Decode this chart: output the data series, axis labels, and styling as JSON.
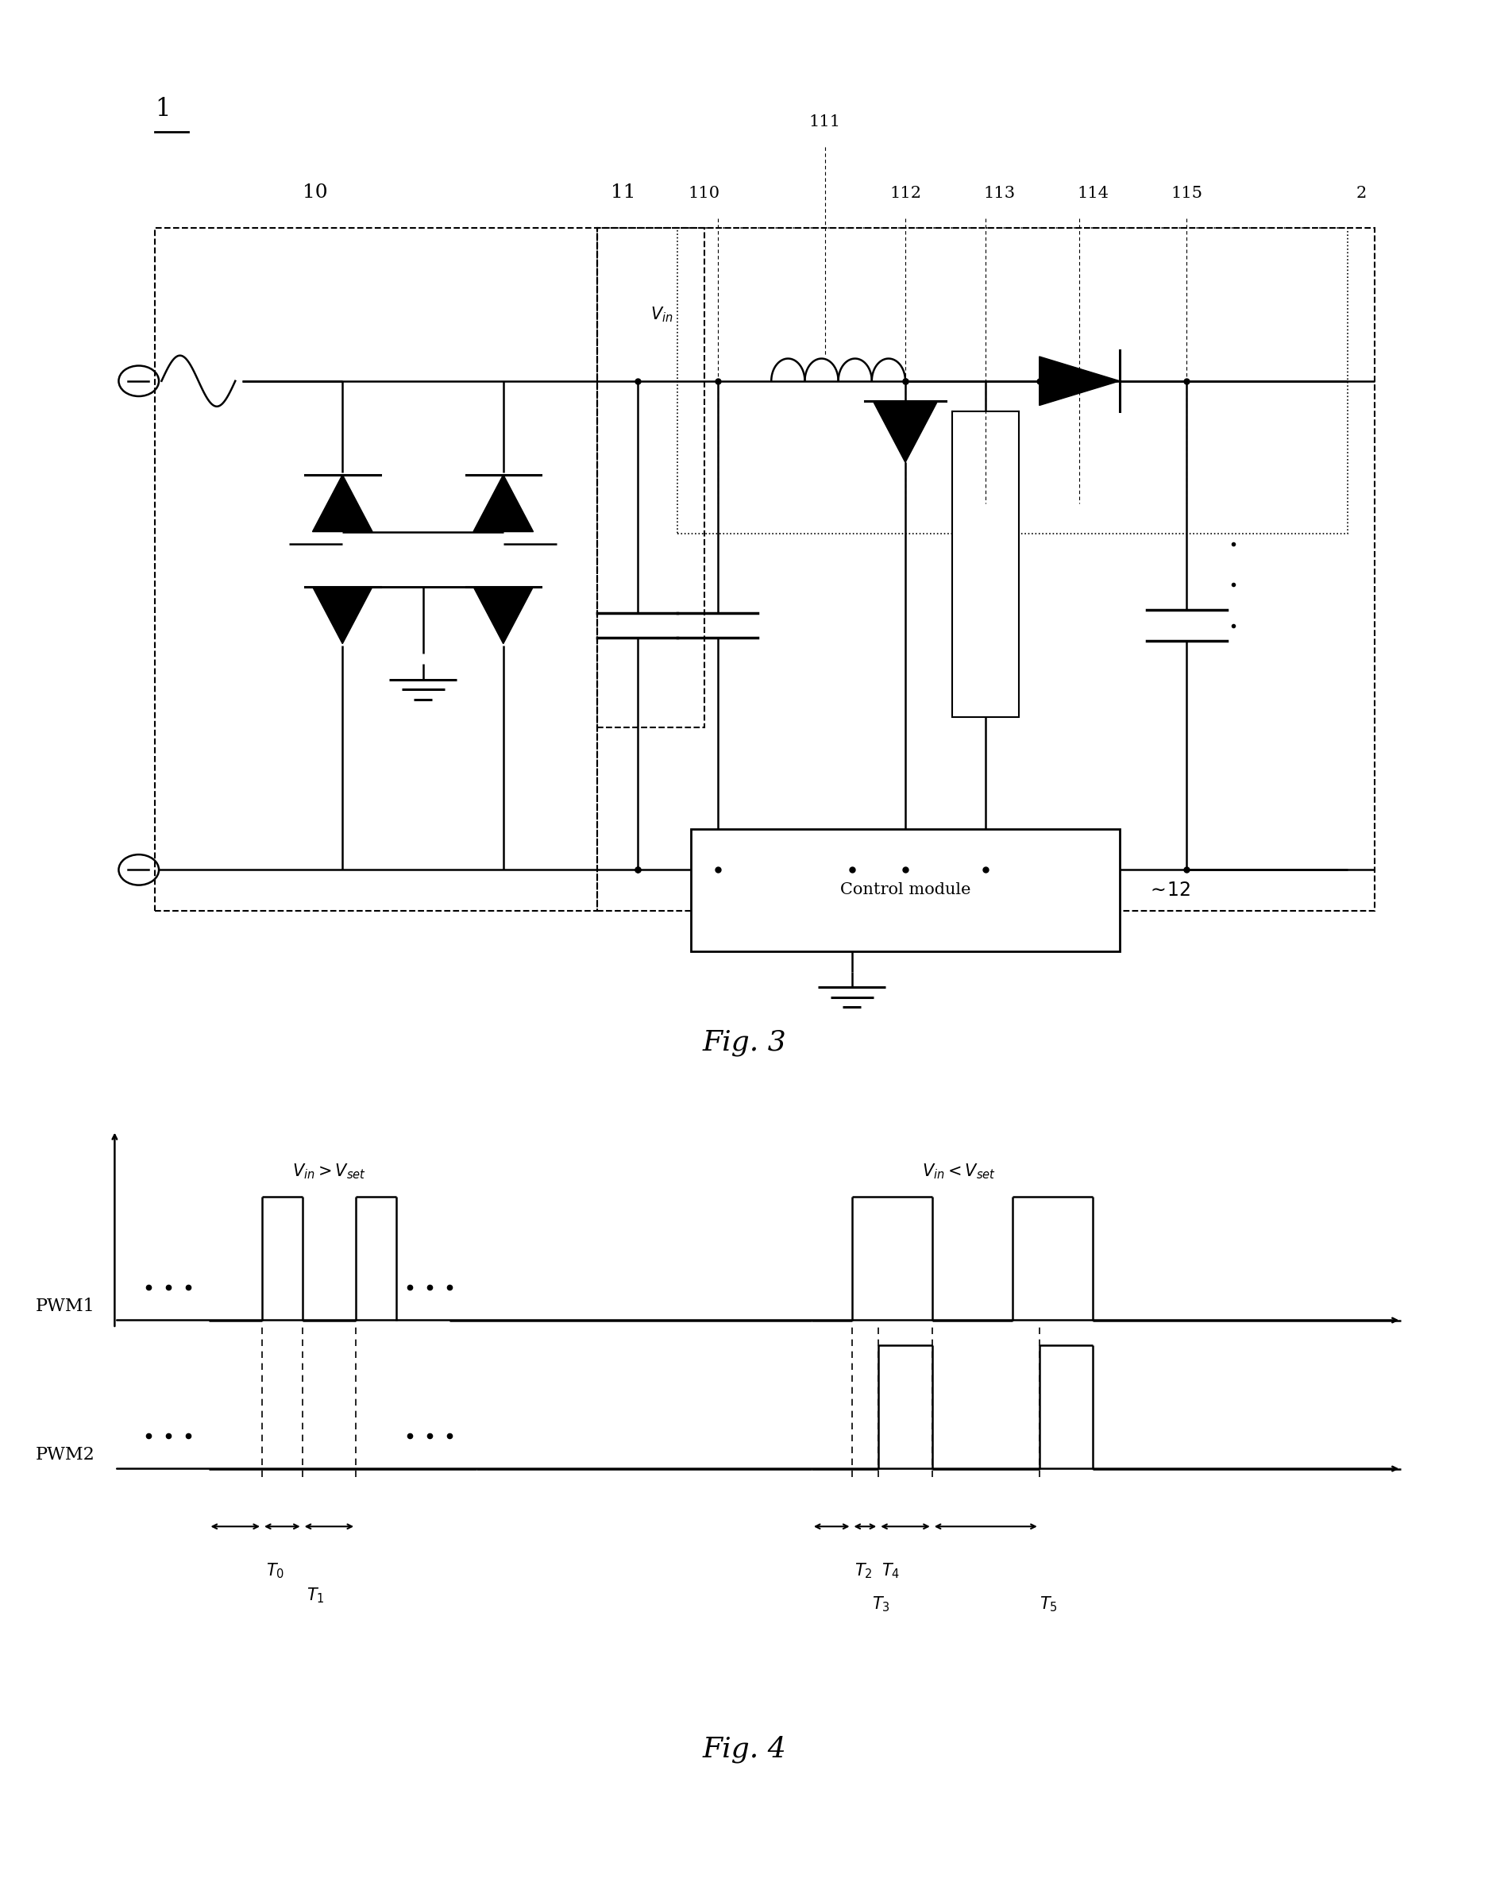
{
  "colors": {
    "black": "#000000",
    "white": "#ffffff"
  },
  "fig3_caption": "Fig. 3",
  "fig4_caption": "Fig. 4",
  "circuit": {
    "label_1": "1",
    "label_10": "10",
    "label_11": "11",
    "label_110": "110",
    "label_111": "111",
    "label_112": "112",
    "label_113": "113",
    "label_114": "114",
    "label_115": "115",
    "label_2": "2",
    "label_12": "12",
    "vin_label": "V_{in}",
    "control_text": "Control module"
  },
  "pwm": {
    "pwm1_label": "PWM1",
    "pwm2_label": "PWM2",
    "vin_gt": "V_{in}>V_{set}",
    "vin_lt": "V_{in}<V_{set}",
    "t_labels": [
      "T_0",
      "T_1",
      "T_2",
      "T_3",
      "T_4",
      "T_5"
    ]
  }
}
